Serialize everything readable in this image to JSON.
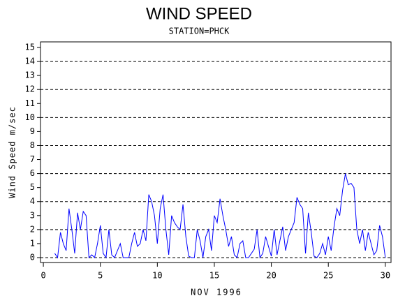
{
  "chart_data": {
    "type": "line",
    "title": "WIND SPEED",
    "subtitle": "STATION=PHCK",
    "x_label": "NOV 1996",
    "y_label": "Wind Speed m/sec",
    "x": [
      1,
      1.25,
      1.5,
      1.75,
      2,
      2.25,
      2.5,
      2.75,
      3,
      3.25,
      3.5,
      3.75,
      4,
      4.25,
      4.5,
      4.75,
      5,
      5.25,
      5.5,
      5.75,
      6,
      6.25,
      6.5,
      6.75,
      7,
      7.25,
      7.5,
      7.75,
      8,
      8.25,
      8.5,
      8.75,
      9,
      9.25,
      9.5,
      9.75,
      10,
      10.25,
      10.5,
      10.75,
      11,
      11.25,
      11.5,
      11.75,
      12,
      12.25,
      12.5,
      12.75,
      13,
      13.25,
      13.5,
      13.75,
      14,
      14.25,
      14.5,
      14.75,
      15,
      15.25,
      15.5,
      15.75,
      16,
      16.25,
      16.5,
      16.75,
      17,
      17.25,
      17.5,
      17.75,
      18,
      18.25,
      18.5,
      18.75,
      19,
      19.25,
      19.5,
      19.75,
      20,
      20.25,
      20.5,
      20.75,
      21,
      21.25,
      21.5,
      21.75,
      22,
      22.25,
      22.5,
      22.75,
      23,
      23.25,
      23.5,
      23.75,
      24,
      24.25,
      24.5,
      24.75,
      25,
      25.25,
      25.5,
      25.75,
      26,
      26.25,
      26.5,
      26.75,
      27,
      27.25,
      27.5,
      27.75,
      28,
      28.25,
      28.5,
      28.75,
      29,
      29.25,
      29.5,
      29.75,
      30
    ],
    "values": [
      0.3,
      0,
      1.8,
      1.0,
      0.5,
      3.5,
      2.0,
      0.3,
      3.2,
      2.0,
      3.3,
      3.0,
      0,
      0.2,
      0,
      1.0,
      2.3,
      0.3,
      0,
      2.0,
      0.2,
      0,
      0.5,
      1.0,
      0,
      0,
      0,
      1.0,
      1.8,
      0.8,
      1.0,
      2.0,
      1.2,
      4.5,
      4.0,
      3.0,
      1.0,
      3.5,
      4.5,
      2.0,
      0.2,
      3.0,
      2.5,
      2.2,
      2.0,
      3.8,
      1.5,
      0.1,
      0,
      0,
      2.0,
      1.2,
      0,
      1.5,
      2.0,
      0.5,
      3.0,
      2.5,
      4.2,
      3.0,
      2.0,
      0.8,
      1.5,
      0.2,
      0,
      1.0,
      1.2,
      0,
      0,
      0.3,
      0.6,
      2.0,
      0,
      0.3,
      1.5,
      0.8,
      0.1,
      2.0,
      0.2,
      1.2,
      2.2,
      0.5,
      1.5,
      2.0,
      2.5,
      4.3,
      3.8,
      3.5,
      0.3,
      3.2,
      1.8,
      0.1,
      0,
      0.3,
      1.0,
      0.2,
      1.5,
      0.5,
      2.2,
      3.5,
      3.0,
      4.8,
      6.0,
      5.2,
      5.3,
      5.0,
      2.0,
      1.0,
      2.0,
      0.5,
      1.8,
      1.0,
      0.2,
      0.5,
      2.3,
      1.5,
      0
    ],
    "color": "#0000ff",
    "xlim": [
      -0.25,
      30.5
    ],
    "xticks": [
      0,
      5,
      10,
      15,
      20,
      25,
      30
    ],
    "ylim": [
      -0.35,
      15.4
    ],
    "yticks": [
      0,
      1,
      2,
      3,
      4,
      5,
      6,
      7,
      8,
      9,
      10,
      11,
      12,
      13,
      14,
      15
    ],
    "hlines": [
      0,
      2,
      4,
      6,
      8,
      10,
      12,
      14
    ]
  }
}
